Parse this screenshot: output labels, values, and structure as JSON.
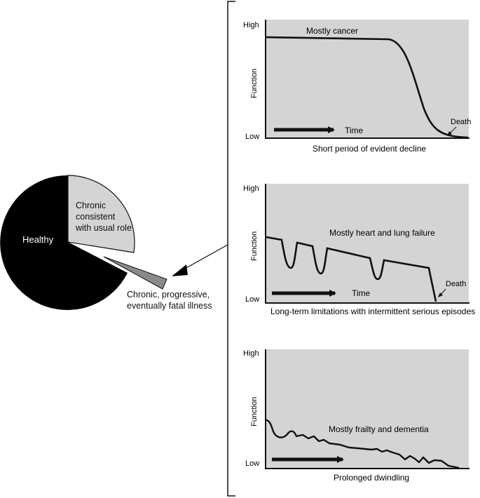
{
  "colors": {
    "panel_fill": "#d4d4d4",
    "healthy": "#000000",
    "chronic_usual": "#d4d4d4",
    "fatal": "#8a8a8a",
    "line": "#111111"
  },
  "pie": {
    "slices": [
      {
        "label": "Healthy",
        "value": 0.65,
        "color": "#000000"
      },
      {
        "label": "Chronic consistent with usual role",
        "lines": [
          "Chronic",
          "consistent",
          "with usual role"
        ],
        "value": 0.3,
        "color": "#d4d4d4"
      },
      {
        "label": "Chronic, progressive, eventually fatal illness",
        "lines": [
          "Chronic, progressive,",
          "eventually fatal illness"
        ],
        "value": 0.05,
        "color": "#8a8a8a",
        "exploded": true
      }
    ]
  },
  "panels": [
    {
      "y_high": "High",
      "y_low": "Low",
      "y_axis_label": "Function",
      "curve_label": "Mostly cancer",
      "time_label": "Time",
      "death_label": "Death",
      "caption": "Short period of evident decline",
      "trajectory": "steep-decline-at-end"
    },
    {
      "y_high": "High",
      "y_low": "Low",
      "y_axis_label": "Function",
      "curve_label": "Mostly heart and lung failure",
      "time_label": "Time",
      "death_label": "Death",
      "caption": "Long-term limitations with intermittent serious episodes",
      "trajectory": "gradual-decline-with-dips"
    },
    {
      "y_high": "High",
      "y_low": "Low",
      "y_axis_label": "Function",
      "curve_label": "Mostly frailty and dementia",
      "time_label": "",
      "death_label": "",
      "caption": "Prolonged dwindling",
      "trajectory": "low-slow-dwindle"
    }
  ]
}
